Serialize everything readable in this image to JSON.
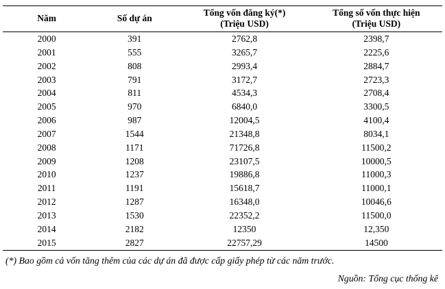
{
  "table": {
    "headers": [
      {
        "title": "Năm",
        "unit": ""
      },
      {
        "title": "Số dự án",
        "unit": ""
      },
      {
        "title": "Tổng vốn đăng ký(*)",
        "unit": "(Triệu USD)"
      },
      {
        "title": "Tổng số vốn thực hiện",
        "unit": "(Triệu USD)"
      }
    ],
    "rows": [
      [
        "2000",
        "391",
        "2762,8",
        "2398,7"
      ],
      [
        "2001",
        "555",
        "3265,7",
        "2225,6"
      ],
      [
        "2002",
        "808",
        "2993,4",
        "2884,7"
      ],
      [
        "2003",
        "791",
        "3172,7",
        "2723,3"
      ],
      [
        "2004",
        "811",
        "4534,3",
        "2708,4"
      ],
      [
        "2005",
        "970",
        "6840,0",
        "3300,5"
      ],
      [
        "2006",
        "987",
        "12004,5",
        "4100,4"
      ],
      [
        "2007",
        "1544",
        "21348,8",
        "8034,1"
      ],
      [
        "2008",
        "1171",
        "71726,8",
        "11500,2"
      ],
      [
        "2009",
        "1208",
        "23107,5",
        "10000,5"
      ],
      [
        "2010",
        "1237",
        "19886,8",
        "11000,3"
      ],
      [
        "2011",
        "1191",
        "15618,7",
        "11000,1"
      ],
      [
        "2012",
        "1287",
        "16348,0",
        "10046,6"
      ],
      [
        "2013",
        "1530",
        "22352,2",
        "11500,0"
      ],
      [
        "2014",
        "2182",
        "12350",
        "12,350"
      ],
      [
        "2015",
        "2827",
        "22757,29",
        "14500"
      ]
    ],
    "cell_names": [
      "year-cell",
      "project-count-cell",
      "registered-capital-cell",
      "implemented-capital-cell"
    ]
  },
  "footnote": "(*) Bao gồm cả vốn tăng thêm của các dự án đã được cấp giấy phép từ các năm trước.",
  "source": "Nguồn: Tổng cục thống kê",
  "colors": {
    "background": "#ffffff",
    "text": "#000000",
    "rule": "#000000"
  }
}
